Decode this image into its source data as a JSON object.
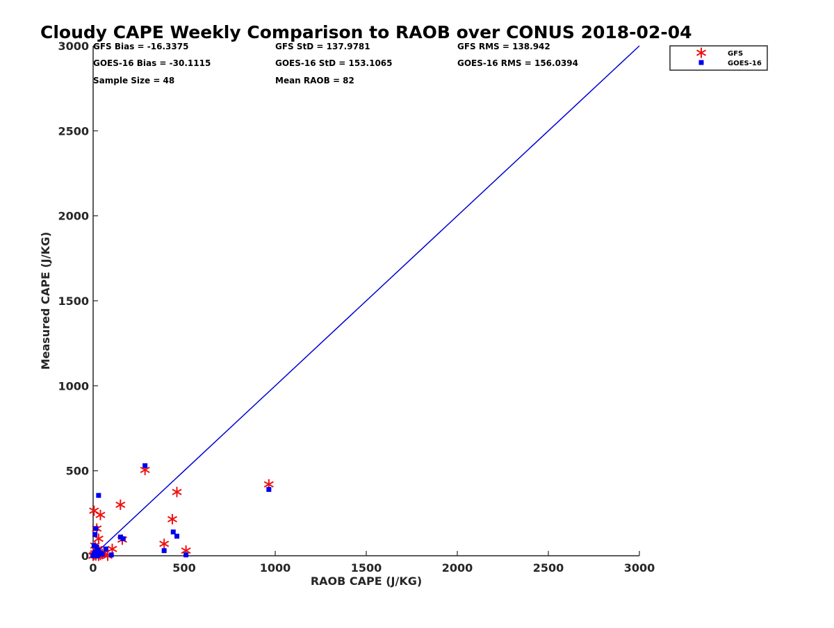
{
  "chart_data": {
    "type": "scatter",
    "title": "Cloudy CAPE Weekly Comparison to RAOB over CONUS 2018-02-04",
    "xlabel": "RAOB CAPE (J/KG)",
    "ylabel": "Measured CAPE (J/KG)",
    "xlim": [
      0,
      3000
    ],
    "ylim": [
      0,
      3000
    ],
    "x_ticks": [
      0,
      500,
      1000,
      1500,
      2000,
      2500,
      3000
    ],
    "y_ticks": [
      0,
      500,
      1000,
      1500,
      2000,
      2500,
      3000
    ],
    "x_tick_labels": [
      "0",
      "500",
      "1000",
      "1500",
      "2000",
      "2500",
      "3000"
    ],
    "y_tick_labels": [
      "0",
      "500",
      "1000",
      "1500",
      "2000",
      "2500",
      "3000"
    ],
    "grid": false,
    "legend_position": "top-right",
    "stats": [
      [
        "GFS Bias = -16.3375",
        "GFS StD = 137.9781",
        "GFS RMS = 138.942"
      ],
      [
        "GOES-16 Bias = -30.1115",
        "GOES-16 StD = 153.1065",
        "GOES-16 RMS = 156.0394"
      ],
      [
        "Sample Size = 48",
        "Mean RAOB = 82",
        ""
      ]
    ],
    "reference_line": {
      "x": [
        0,
        3000
      ],
      "y": [
        0,
        3000
      ],
      "color": "#0000d0"
    },
    "series": [
      {
        "name": "GFS",
        "marker": "asterisk",
        "color": "#ee1111",
        "points": [
          [
            0,
            0
          ],
          [
            5,
            5
          ],
          [
            10,
            15
          ],
          [
            15,
            2
          ],
          [
            20,
            30
          ],
          [
            30,
            0
          ],
          [
            40,
            5
          ],
          [
            50,
            10
          ],
          [
            60,
            20
          ],
          [
            80,
            0
          ],
          [
            5,
            265
          ],
          [
            20,
            160
          ],
          [
            30,
            100
          ],
          [
            40,
            240
          ],
          [
            10,
            60
          ],
          [
            25,
            40
          ],
          [
            105,
            40
          ],
          [
            150,
            300
          ],
          [
            160,
            95
          ],
          [
            285,
            505
          ],
          [
            390,
            70
          ],
          [
            435,
            215
          ],
          [
            460,
            375
          ],
          [
            510,
            30
          ],
          [
            965,
            420
          ]
        ]
      },
      {
        "name": "GOES-16",
        "marker": "square",
        "color": "#0000ee",
        "points": [
          [
            0,
            0
          ],
          [
            5,
            10
          ],
          [
            10,
            20
          ],
          [
            15,
            5
          ],
          [
            20,
            50
          ],
          [
            25,
            0
          ],
          [
            30,
            30
          ],
          [
            50,
            10
          ],
          [
            70,
            40
          ],
          [
            100,
            5
          ],
          [
            10,
            125
          ],
          [
            15,
            160
          ],
          [
            30,
            355
          ],
          [
            5,
            60
          ],
          [
            40,
            15
          ],
          [
            150,
            110
          ],
          [
            165,
            100
          ],
          [
            285,
            530
          ],
          [
            390,
            30
          ],
          [
            440,
            140
          ],
          [
            460,
            115
          ],
          [
            510,
            5
          ],
          [
            965,
            390
          ]
        ]
      }
    ]
  }
}
